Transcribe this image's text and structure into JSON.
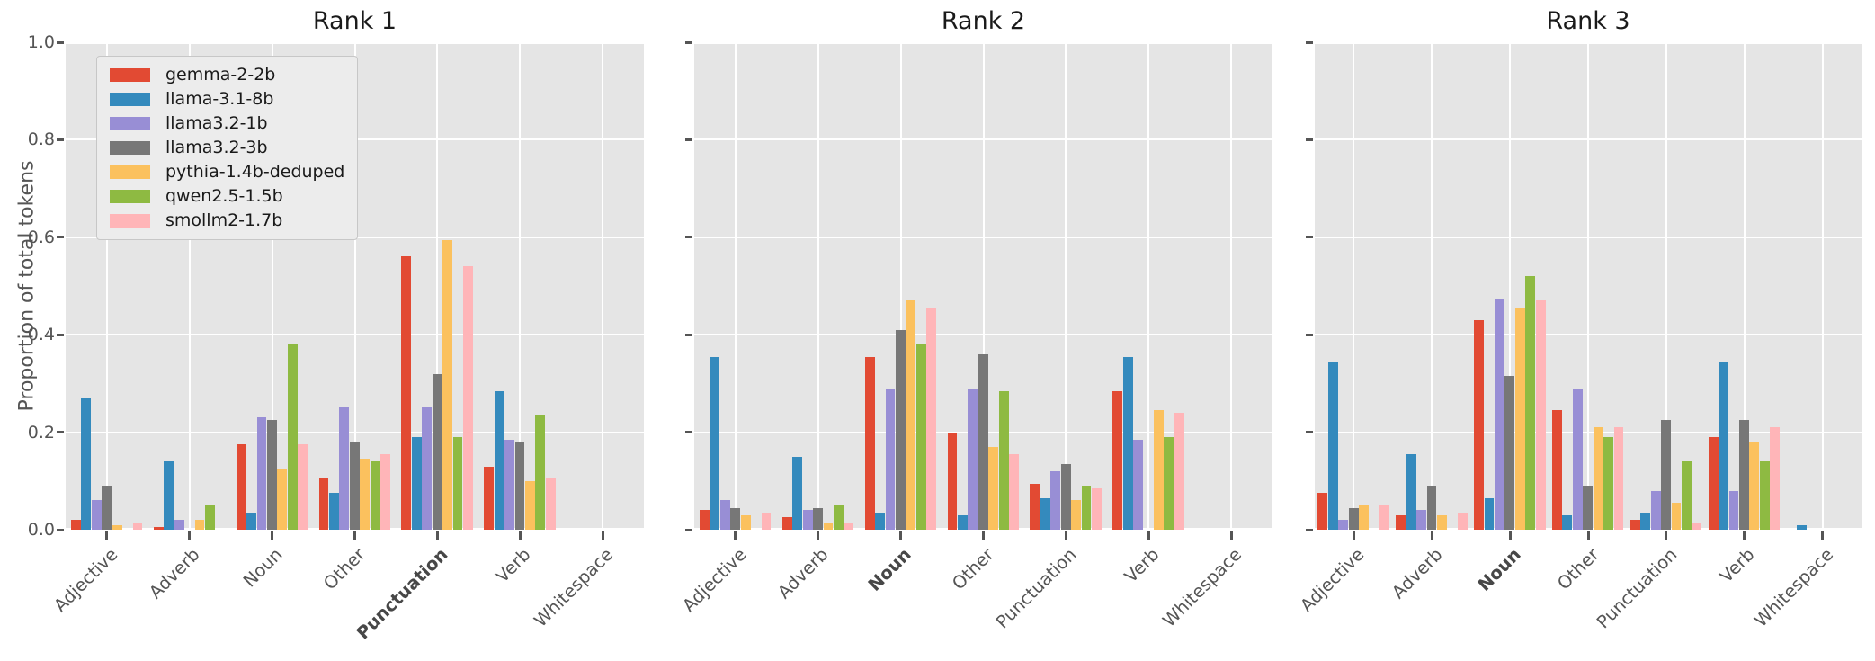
{
  "figure": {
    "ylabel": "Proportion of total tokens",
    "background": "#ffffff",
    "plot_background": "#e5e5e5",
    "grid_color": "#ffffff",
    "tick_color": "#555555",
    "yticks": [
      "0.0",
      "0.2",
      "0.4",
      "0.6",
      "0.8",
      "1.0"
    ]
  },
  "legend": {
    "position": "upper left",
    "entries": [
      {
        "label": "gemma-2-2b",
        "color": "#E24A33"
      },
      {
        "label": "llama-3.1-8b",
        "color": "#348ABD"
      },
      {
        "label": "llama3.2-1b",
        "color": "#988ED5"
      },
      {
        "label": "llama3.2-3b",
        "color": "#777777"
      },
      {
        "label": "pythia-1.4b-deduped",
        "color": "#FBC15E"
      },
      {
        "label": "qwen2.5-1.5b",
        "color": "#8EBA42"
      },
      {
        "label": "smollm2-1.7b",
        "color": "#FFB5B8"
      }
    ]
  },
  "chart_data": [
    {
      "type": "bar",
      "title": "Rank 1",
      "ylabel": "Proportion of total tokens",
      "ylim": [
        0,
        1.0
      ],
      "grid": true,
      "show_ytick_labels": true,
      "show_legend": true,
      "categories": [
        "Adjective",
        "Adverb",
        "Noun",
        "Other",
        "Punctuation",
        "Verb",
        "Whitespace"
      ],
      "bold_category": "Punctuation",
      "series": [
        {
          "name": "gemma-2-2b",
          "color": "#E24A33",
          "values": [
            0.02,
            0.005,
            0.175,
            0.105,
            0.56,
            0.13,
            0
          ]
        },
        {
          "name": "llama-3.1-8b",
          "color": "#348ABD",
          "values": [
            0.27,
            0.14,
            0.035,
            0.075,
            0.19,
            0.285,
            0
          ]
        },
        {
          "name": "llama3.2-1b",
          "color": "#988ED5",
          "values": [
            0.06,
            0.02,
            0.23,
            0.25,
            0.25,
            0.185,
            0
          ]
        },
        {
          "name": "llama3.2-3b",
          "color": "#777777",
          "values": [
            0.09,
            0,
            0.225,
            0.18,
            0.32,
            0.18,
            0
          ]
        },
        {
          "name": "pythia-1.4b-deduped",
          "color": "#FBC15E",
          "values": [
            0.01,
            0.02,
            0.125,
            0.145,
            0.595,
            0.1,
            0
          ]
        },
        {
          "name": "qwen2.5-1.5b",
          "color": "#8EBA42",
          "values": [
            0,
            0.05,
            0.38,
            0.14,
            0.19,
            0.235,
            0
          ]
        },
        {
          "name": "smollm2-1.7b",
          "color": "#FFB5B8",
          "values": [
            0.015,
            0,
            0.175,
            0.155,
            0.54,
            0.105,
            0
          ]
        }
      ]
    },
    {
      "type": "bar",
      "title": "Rank 2",
      "ylabel": "",
      "ylim": [
        0,
        1.0
      ],
      "grid": true,
      "show_ytick_labels": false,
      "show_legend": false,
      "categories": [
        "Adjective",
        "Adverb",
        "Noun",
        "Other",
        "Punctuation",
        "Verb",
        "Whitespace"
      ],
      "bold_category": "Noun",
      "series": [
        {
          "name": "gemma-2-2b",
          "color": "#E24A33",
          "values": [
            0.04,
            0.025,
            0.355,
            0.2,
            0.095,
            0.285,
            0
          ]
        },
        {
          "name": "llama-3.1-8b",
          "color": "#348ABD",
          "values": [
            0.355,
            0.15,
            0.035,
            0.03,
            0.065,
            0.355,
            0
          ]
        },
        {
          "name": "llama3.2-1b",
          "color": "#988ED5",
          "values": [
            0.06,
            0.04,
            0.29,
            0.29,
            0.12,
            0.185,
            0
          ]
        },
        {
          "name": "llama3.2-3b",
          "color": "#777777",
          "values": [
            0.045,
            0.045,
            0.41,
            0.36,
            0.135,
            0,
            0
          ]
        },
        {
          "name": "pythia-1.4b-deduped",
          "color": "#FBC15E",
          "values": [
            0.03,
            0.015,
            0.47,
            0.17,
            0.06,
            0.245,
            0
          ]
        },
        {
          "name": "qwen2.5-1.5b",
          "color": "#8EBA42",
          "values": [
            0,
            0.05,
            0.38,
            0.285,
            0.09,
            0.19,
            0
          ]
        },
        {
          "name": "smollm2-1.7b",
          "color": "#FFB5B8",
          "values": [
            0.035,
            0.015,
            0.455,
            0.155,
            0.085,
            0.24,
            0
          ]
        }
      ]
    },
    {
      "type": "bar",
      "title": "Rank 3",
      "ylabel": "",
      "ylim": [
        0,
        1.0
      ],
      "grid": true,
      "show_ytick_labels": false,
      "show_legend": false,
      "categories": [
        "Adjective",
        "Adverb",
        "Noun",
        "Other",
        "Punctuation",
        "Verb",
        "Whitespace"
      ],
      "bold_category": "Noun",
      "series": [
        {
          "name": "gemma-2-2b",
          "color": "#E24A33",
          "values": [
            0.075,
            0.03,
            0.43,
            0.245,
            0.02,
            0.19,
            0
          ]
        },
        {
          "name": "llama-3.1-8b",
          "color": "#348ABD",
          "values": [
            0.345,
            0.155,
            0.065,
            0.03,
            0.035,
            0.345,
            0.01
          ]
        },
        {
          "name": "llama3.2-1b",
          "color": "#988ED5",
          "values": [
            0.02,
            0.04,
            0.475,
            0.29,
            0.08,
            0.08,
            0
          ]
        },
        {
          "name": "llama3.2-3b",
          "color": "#777777",
          "values": [
            0.045,
            0.09,
            0.315,
            0.09,
            0.225,
            0.225,
            0
          ]
        },
        {
          "name": "pythia-1.4b-deduped",
          "color": "#FBC15E",
          "values": [
            0.05,
            0.03,
            0.455,
            0.21,
            0.055,
            0.18,
            0
          ]
        },
        {
          "name": "qwen2.5-1.5b",
          "color": "#8EBA42",
          "values": [
            0,
            0,
            0.52,
            0.19,
            0.14,
            0.14,
            0
          ]
        },
        {
          "name": "smollm2-1.7b",
          "color": "#FFB5B8",
          "values": [
            0.05,
            0.035,
            0.47,
            0.21,
            0.015,
            0.21,
            0
          ]
        }
      ]
    }
  ]
}
